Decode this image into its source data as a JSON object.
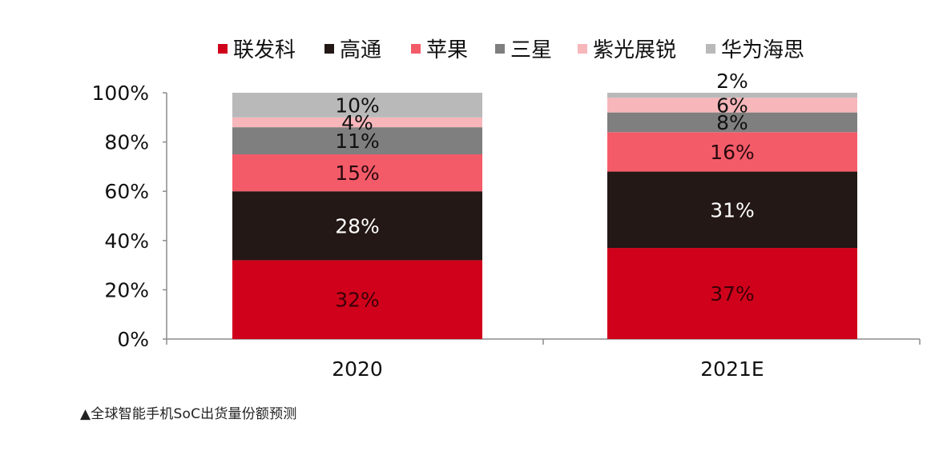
{
  "caption": "▲全球智能手机SoC出货量份额预测",
  "chart_data": {
    "type": "bar",
    "stacked": true,
    "categories": [
      "2020",
      "2021E"
    ],
    "series": [
      {
        "name": "联发科",
        "color": "#d0021b",
        "label_color": "#3a0008",
        "values": [
          32,
          37
        ]
      },
      {
        "name": "高通",
        "color": "#231815",
        "label_color": "#ffffff",
        "values": [
          28,
          31
        ]
      },
      {
        "name": "苹果",
        "color": "#f45b69",
        "label_color": "#2a0a0e",
        "values": [
          15,
          16
        ]
      },
      {
        "name": "三星",
        "color": "#7f7f7f",
        "label_color": "#111111",
        "values": [
          11,
          8
        ]
      },
      {
        "name": "紫光展锐",
        "color": "#f7b6ba",
        "label_color": "#111111",
        "values": [
          4,
          6
        ]
      },
      {
        "name": "华为海思",
        "color": "#b9b9b9",
        "label_color": "#111111",
        "values": [
          10,
          2
        ]
      }
    ],
    "data_labels": [
      [
        "32%",
        "28%",
        "15%",
        "11%",
        "4%",
        "10%"
      ],
      [
        "37%",
        "31%",
        "16%",
        "8%",
        "6%",
        "2%"
      ]
    ],
    "y_ticks": [
      "0%",
      "20%",
      "40%",
      "60%",
      "80%",
      "100%"
    ],
    "ylim": [
      0,
      100
    ],
    "legend_position": "top",
    "grid": false
  }
}
